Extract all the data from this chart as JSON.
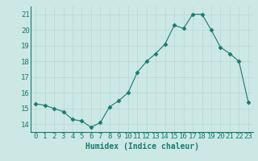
{
  "x": [
    0,
    1,
    2,
    3,
    4,
    5,
    6,
    7,
    8,
    9,
    10,
    11,
    12,
    13,
    14,
    15,
    16,
    17,
    18,
    19,
    20,
    21,
    22,
    23
  ],
  "y": [
    15.3,
    15.2,
    15.0,
    14.8,
    14.3,
    14.2,
    13.8,
    14.1,
    15.1,
    15.5,
    16.0,
    17.3,
    18.0,
    18.5,
    19.1,
    20.3,
    20.1,
    21.0,
    21.0,
    20.0,
    18.9,
    18.5,
    18.0,
    15.4
  ],
  "line_color": "#1a7a6e",
  "marker": "D",
  "marker_size": 2.5,
  "xlabel": "Humidex (Indice chaleur)",
  "ylim": [
    13.5,
    21.5
  ],
  "xlim": [
    -0.5,
    23.5
  ],
  "yticks": [
    14,
    15,
    16,
    17,
    18,
    19,
    20,
    21
  ],
  "xtick_labels": [
    "0",
    "1",
    "2",
    "3",
    "4",
    "5",
    "6",
    "7",
    "8",
    "9",
    "10",
    "11",
    "12",
    "13",
    "14",
    "15",
    "16",
    "17",
    "18",
    "19",
    "20",
    "21",
    "22",
    "23"
  ],
  "bg_color": "#cce8e4",
  "grid_color": "#b8d8d4",
  "label_color": "#1a7a6e",
  "label_fontsize": 7,
  "tick_fontsize": 6.5
}
